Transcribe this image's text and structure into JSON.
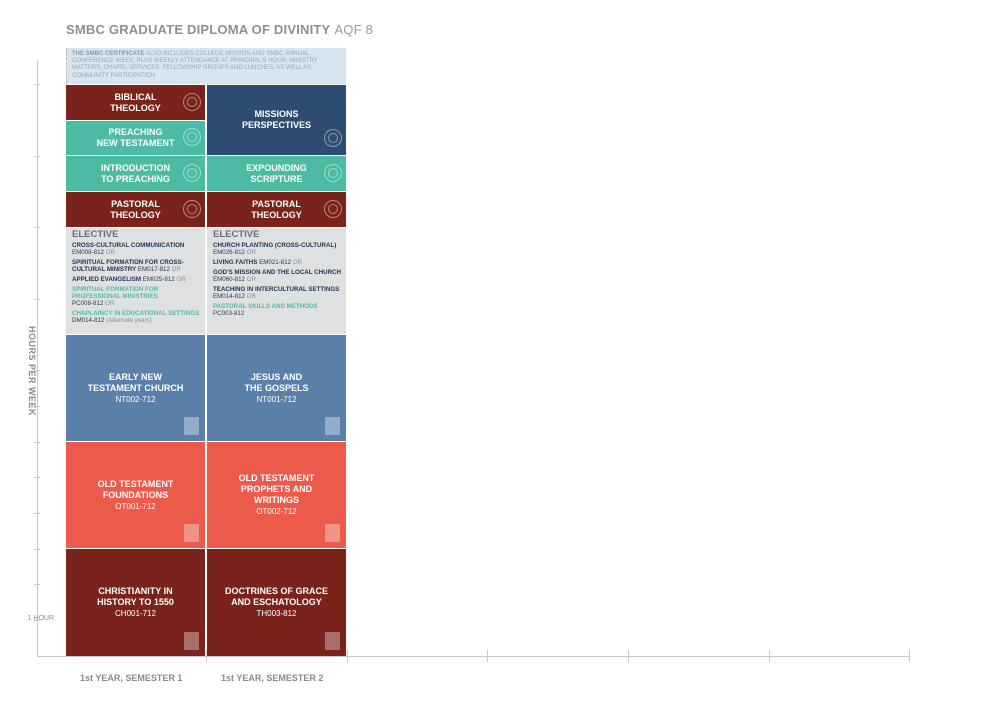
{
  "title": {
    "main": "SMBC GRADUATE DIPLOMA OF DIVINITY",
    "aqf": "AQF 8"
  },
  "note": {
    "lead": "THE SMBC CERTIFICATE",
    "text": " ALSO INCLUDES COLLEGE MISSION AND SMBC ANNUAL CONFERENCE WEEK, PLUS WEEKLY ATTENDANCE AT PRINCIPAL'S HOUR, MINISTRY MATTERS, CHAPEL SERVICES, FELLOWSHIP GROUPS AND LUNCHES, AS WELL AS COMMUNITY PARTICIPATION"
  },
  "axis": {
    "ylabel": "HOURS PER WEEK",
    "one_hour": "1 HOUR"
  },
  "semesters": [
    "1st YEAR, SEMESTER 1",
    "1st YEAR, SEMESTER 2"
  ],
  "colors": {
    "red": "#7a231b",
    "teal": "#4dbba3",
    "navy": "#2d4c71",
    "steel": "#5a80a9",
    "coral": "#ec5a4c",
    "elective_bg": "#dfe0e2",
    "note_bg": "#d6e6ef"
  },
  "sem1": {
    "biblical": {
      "title": "BIBLICAL\nTHEOLOGY",
      "icon": "globe-icon"
    },
    "preaching_nt": {
      "title": "PREACHING\nNEW TESTAMENT",
      "icon": "globe-icon"
    },
    "intro_preaching": {
      "title": "INTRODUCTION\nTO PREACHING",
      "icon": "globe-icon"
    },
    "pastoral": {
      "title": "PASTORAL\nTHEOLOGY",
      "icon": "globe-icon"
    },
    "elective": {
      "heading": "ELECTIVE",
      "items": [
        {
          "name": "CROSS-CULTURAL COMMUNICATION",
          "code": "EM008-812",
          "or": "OR"
        },
        {
          "name": "SPIRITUAL FORMATION FOR CROSS-CULTURAL MINISTRY",
          "code": "EM017-812",
          "or": "OR"
        },
        {
          "name": "APPLIED EVANGELISM",
          "code": "EM025-812",
          "or": "OR"
        },
        {
          "name": "SPIRITUAL FORMATION FOR PROFESSIONAL MINISTRIES",
          "code": "PC008-812",
          "or": "OR"
        },
        {
          "name": "CHAPLAINCY IN EDUCATIONAL SETTINGS",
          "code": "DM014-812",
          "extra": "(Alternate years)"
        }
      ]
    },
    "early_nt": {
      "title": "EARLY NEW\nTESTAMENT CHURCH",
      "code": "NT002-712"
    },
    "ot_found": {
      "title": "OLD TESTAMENT\nFOUNDATIONS",
      "code": "OT001-712"
    },
    "christianity": {
      "title": "CHRISTIANITY IN\nHISTORY TO 1550",
      "code": "CH001-712"
    }
  },
  "sem2": {
    "missions": {
      "title": "MISSIONS\nPERSPECTIVES",
      "icon": "globe-icon"
    },
    "expounding": {
      "title": "EXPOUNDING\nSCRIPTURE",
      "icon": "globe-icon"
    },
    "pastoral": {
      "title": "PASTORAL\nTHEOLOGY",
      "icon": "globe-icon"
    },
    "elective": {
      "heading": "ELECTIVE",
      "items": [
        {
          "name": "CHURCH PLANTING (CROSS-CULTURAL)",
          "code": "EM026-812",
          "or": "OR"
        },
        {
          "name": "LIVING FAITHS",
          "code": "EM021-812",
          "or": "OR"
        },
        {
          "name": "GOD'S MISSION AND THE LOCAL CHURCH",
          "code": "EM060-812",
          "or": "OR"
        },
        {
          "name": "TEACHING IN INTERCULTURAL SETTINGS",
          "code": "EM014-812",
          "or": "OR"
        },
        {
          "name": "PASTORAL SKILLS AND METHODS",
          "code": "PC003-812"
        }
      ]
    },
    "jesus": {
      "title": "JESUS AND\nTHE GOSPELS",
      "code": "NT001-712"
    },
    "ot_prophets": {
      "title": "OLD TESTAMENT\nPROPHETS AND\nWRITINGS",
      "code": "OT002-712"
    },
    "doctrines": {
      "title": "DOCTRINES OF GRACE\nAND ESCHATOLOGY",
      "code": "TH003-812"
    }
  },
  "badge_text": "15\nCP"
}
